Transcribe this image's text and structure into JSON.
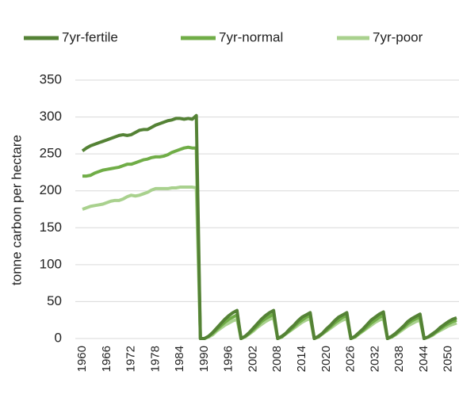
{
  "chart_data": {
    "type": "line",
    "y_label": "tonne carbon per hectare",
    "x": [
      1960,
      1961,
      1962,
      1963,
      1964,
      1965,
      1966,
      1967,
      1968,
      1969,
      1970,
      1971,
      1972,
      1973,
      1974,
      1975,
      1976,
      1977,
      1978,
      1979,
      1980,
      1981,
      1982,
      1983,
      1984,
      1985,
      1986,
      1987,
      1988,
      1989,
      1990,
      1991,
      1992,
      1993,
      1994,
      1995,
      1996,
      1997,
      1998,
      1999,
      2000,
      2001,
      2002,
      2003,
      2004,
      2005,
      2006,
      2007,
      2008,
      2009,
      2010,
      2011,
      2012,
      2013,
      2014,
      2015,
      2016,
      2017,
      2018,
      2019,
      2020,
      2021,
      2022,
      2023,
      2024,
      2025,
      2026,
      2027,
      2028,
      2029,
      2030,
      2031,
      2032,
      2033,
      2034,
      2035,
      2036,
      2037,
      2038,
      2039,
      2040,
      2041,
      2042,
      2043,
      2044,
      2045,
      2046,
      2047,
      2048,
      2049,
      2050,
      2051,
      2052
    ],
    "series": [
      {
        "name": "7yr-fertile",
        "color": "#548235",
        "values": [
          254,
          258,
          261,
          263,
          265,
          267,
          269,
          271,
          273,
          275,
          276,
          275,
          276,
          279,
          282,
          283,
          283,
          286,
          289,
          291,
          293,
          295,
          296,
          298,
          298,
          297,
          298,
          297,
          302,
          0,
          0,
          3,
          8,
          14,
          20,
          26,
          31,
          35,
          38,
          0,
          3,
          8,
          14,
          20,
          26,
          31,
          35,
          38,
          0,
          3,
          7,
          13,
          18,
          24,
          29,
          32,
          35,
          0,
          3,
          7,
          13,
          18,
          24,
          29,
          32,
          35,
          0,
          3,
          8,
          13,
          19,
          25,
          29,
          33,
          36,
          0,
          3,
          7,
          12,
          17,
          23,
          27,
          30,
          33,
          0,
          2,
          6,
          10,
          15,
          19,
          23,
          26,
          28
        ]
      },
      {
        "name": "7yr-normal",
        "color": "#70ad47",
        "values": [
          220,
          220,
          221,
          224,
          226,
          228,
          229,
          230,
          231,
          232,
          234,
          236,
          236,
          238,
          240,
          242,
          243,
          245,
          246,
          246,
          247,
          249,
          252,
          254,
          256,
          258,
          259,
          258,
          258,
          0,
          0,
          3,
          7,
          12,
          17,
          22,
          26,
          29,
          32,
          0,
          3,
          7,
          12,
          17,
          23,
          27,
          30,
          33,
          0,
          2,
          7,
          11,
          16,
          21,
          25,
          29,
          31,
          0,
          2,
          7,
          11,
          16,
          21,
          25,
          29,
          31,
          0,
          2,
          7,
          11,
          16,
          21,
          25,
          29,
          31,
          0,
          2,
          6,
          11,
          15,
          20,
          24,
          27,
          29,
          0,
          2,
          5,
          9,
          13,
          17,
          20,
          23,
          25
        ]
      },
      {
        "name": "7yr-poor",
        "color": "#a9d18e",
        "values": [
          175,
          177,
          179,
          180,
          181,
          182,
          184,
          186,
          187,
          187,
          189,
          192,
          194,
          193,
          194,
          196,
          198,
          201,
          203,
          203,
          203,
          203,
          204,
          204,
          205,
          205,
          205,
          205,
          204,
          0,
          0,
          2,
          5,
          10,
          14,
          18,
          21,
          24,
          26,
          0,
          2,
          6,
          10,
          15,
          19,
          23,
          26,
          28,
          0,
          2,
          6,
          10,
          14,
          18,
          22,
          25,
          27,
          0,
          2,
          6,
          10,
          14,
          18,
          22,
          25,
          27,
          0,
          2,
          6,
          10,
          14,
          18,
          22,
          25,
          27,
          0,
          2,
          5,
          9,
          13,
          17,
          20,
          23,
          25,
          0,
          2,
          4,
          8,
          11,
          14,
          17,
          19,
          21
        ]
      }
    ],
    "xlim": [
      1960,
      2052
    ],
    "xticks": [
      1960,
      1966,
      1972,
      1978,
      1984,
      1990,
      1996,
      2002,
      2008,
      2014,
      2020,
      2026,
      2032,
      2038,
      2044,
      2050
    ],
    "ylim": [
      0,
      350
    ],
    "yticks": [
      0,
      50,
      100,
      150,
      200,
      250,
      300,
      350
    ],
    "grid": true,
    "legend": "top"
  }
}
